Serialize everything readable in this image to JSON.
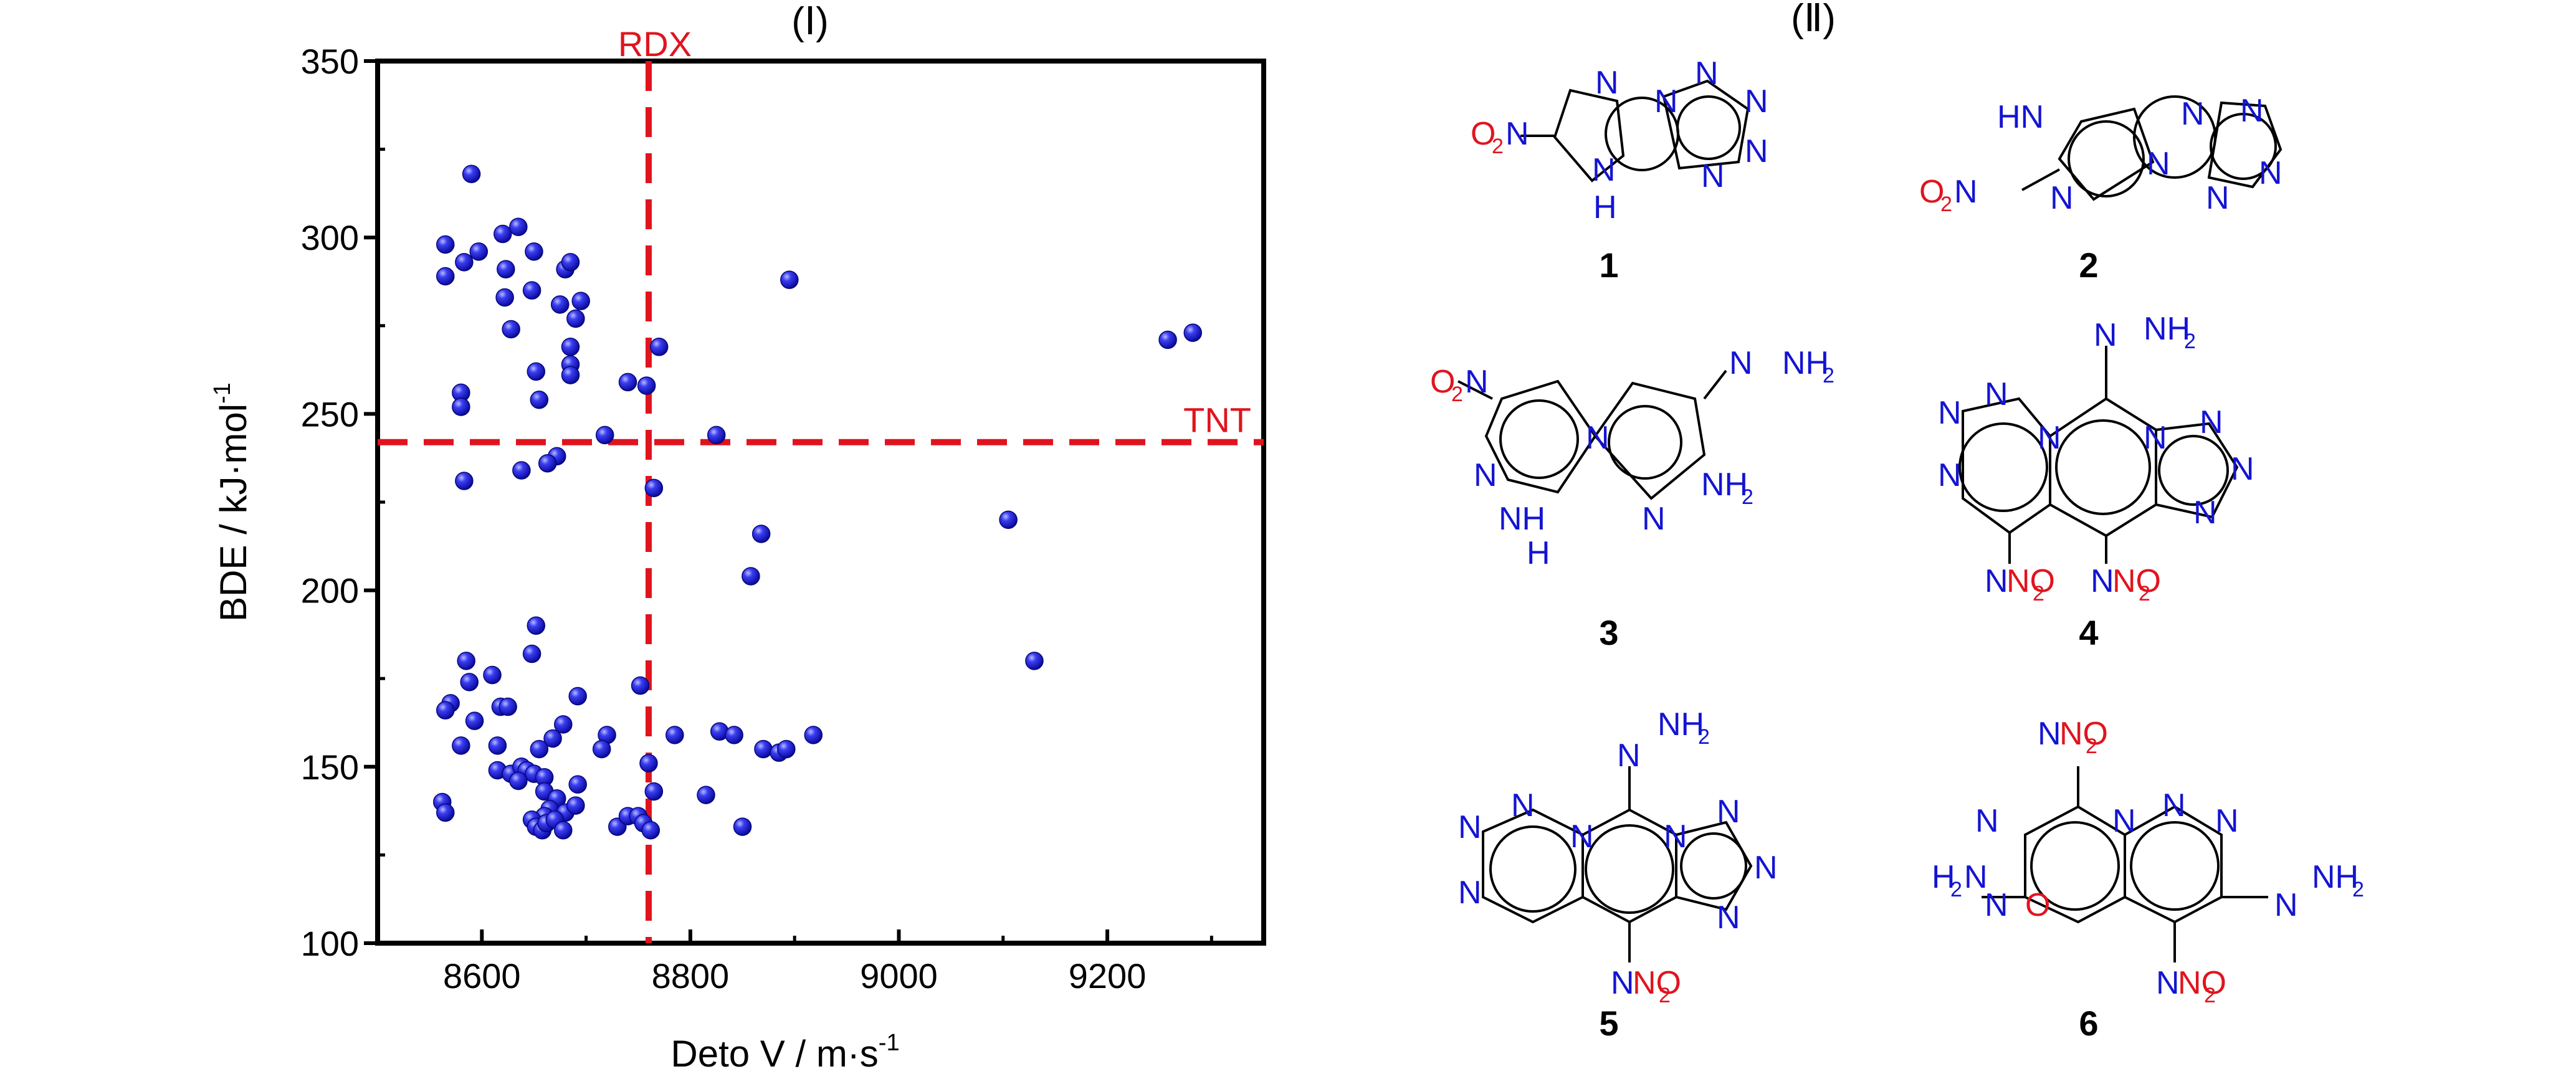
{
  "panel_labels": {
    "left": "(Ⅰ)",
    "right": "(Ⅱ)"
  },
  "chart_data": {
    "type": "scatter",
    "title": "",
    "xlabel_main": "Deto V / m·s",
    "xlabel_sup": "-1",
    "ylabel_main": "BDE / kJ·mol",
    "ylabel_sup": "-1",
    "xlim": [
      8500,
      9350
    ],
    "ylim": [
      100,
      350
    ],
    "xticks": [
      8600,
      8800,
      9000,
      9200
    ],
    "yticks": [
      100,
      150,
      200,
      250,
      300,
      350
    ],
    "grid": false,
    "point_color": "#1414d2",
    "reference_color": "#e0141e",
    "reference_lines": [
      {
        "label": "RDX",
        "axis": "x",
        "value": 8760
      },
      {
        "label": "TNT",
        "axis": "y",
        "value": 242
      }
    ],
    "series": [
      {
        "points": [
          [
            8590,
            318
          ],
          [
            8565,
            298
          ],
          [
            8583,
            293
          ],
          [
            8597,
            296
          ],
          [
            8620,
            301
          ],
          [
            8635,
            303
          ],
          [
            8650,
            296
          ],
          [
            8565,
            289
          ],
          [
            8623,
            291
          ],
          [
            8680,
            291
          ],
          [
            8685,
            293
          ],
          [
            8622,
            283
          ],
          [
            8648,
            285
          ],
          [
            8675,
            281
          ],
          [
            8695,
            282
          ],
          [
            8690,
            277
          ],
          [
            8628,
            274
          ],
          [
            8685,
            269
          ],
          [
            8685,
            264
          ],
          [
            8685,
            261
          ],
          [
            8652,
            262
          ],
          [
            8740,
            259
          ],
          [
            8758,
            258
          ],
          [
            8770,
            269
          ],
          [
            8580,
            256
          ],
          [
            8580,
            252
          ],
          [
            8655,
            254
          ],
          [
            8718,
            244
          ],
          [
            8825,
            244
          ],
          [
            8672,
            238
          ],
          [
            8663,
            236
          ],
          [
            8638,
            234
          ],
          [
            8583,
            231
          ],
          [
            8765,
            229
          ],
          [
            8868,
            216
          ],
          [
            8858,
            204
          ],
          [
            9105,
            220
          ],
          [
            9130,
            180
          ],
          [
            8895,
            288
          ],
          [
            9258,
            271
          ],
          [
            9282,
            273
          ],
          [
            8652,
            190
          ],
          [
            8648,
            182
          ],
          [
            8585,
            180
          ],
          [
            8610,
            176
          ],
          [
            8588,
            174
          ],
          [
            8570,
            168
          ],
          [
            8565,
            166
          ],
          [
            8618,
            167
          ],
          [
            8625,
            167
          ],
          [
            8593,
            163
          ],
          [
            8678,
            162
          ],
          [
            8752,
            173
          ],
          [
            8692,
            170
          ],
          [
            8720,
            159
          ],
          [
            8668,
            158
          ],
          [
            8715,
            155
          ],
          [
            8655,
            155
          ],
          [
            8580,
            156
          ],
          [
            8615,
            156
          ],
          [
            8785,
            159
          ],
          [
            8828,
            160
          ],
          [
            8842,
            159
          ],
          [
            8870,
            155
          ],
          [
            8885,
            154
          ],
          [
            8892,
            155
          ],
          [
            8918,
            159
          ],
          [
            8760,
            151
          ],
          [
            8615,
            149
          ],
          [
            8628,
            148
          ],
          [
            8638,
            150
          ],
          [
            8643,
            149
          ],
          [
            8650,
            148
          ],
          [
            8635,
            146
          ],
          [
            8660,
            147
          ],
          [
            8660,
            143
          ],
          [
            8672,
            141
          ],
          [
            8692,
            145
          ],
          [
            8665,
            138
          ],
          [
            8680,
            137
          ],
          [
            8660,
            136
          ],
          [
            8690,
            139
          ],
          [
            8765,
            143
          ],
          [
            8815,
            142
          ],
          [
            8562,
            140
          ],
          [
            8565,
            137
          ],
          [
            8648,
            135
          ],
          [
            8652,
            133
          ],
          [
            8658,
            132
          ],
          [
            8662,
            134
          ],
          [
            8670,
            135
          ],
          [
            8678,
            132
          ],
          [
            8730,
            133
          ],
          [
            8740,
            136
          ],
          [
            8750,
            136
          ],
          [
            8755,
            134
          ],
          [
            8762,
            132
          ],
          [
            8850,
            133
          ]
        ]
      }
    ]
  },
  "structures": {
    "labels": [
      "1",
      "2",
      "3",
      "4",
      "5",
      "6"
    ],
    "atoms": {
      "N": "N",
      "NH": "NH",
      "HN": "HN",
      "H": "H",
      "O": "O",
      "O2": "O",
      "NO2": "NO",
      "sub2": "2",
      "NH2": "NH",
      "H2N": "H",
      "H2N_tail": "N",
      "N_eq": "N"
    },
    "colors": {
      "nitrogen": "#1414d2",
      "oxygen": "#e0141e",
      "bond": "#000000"
    }
  }
}
